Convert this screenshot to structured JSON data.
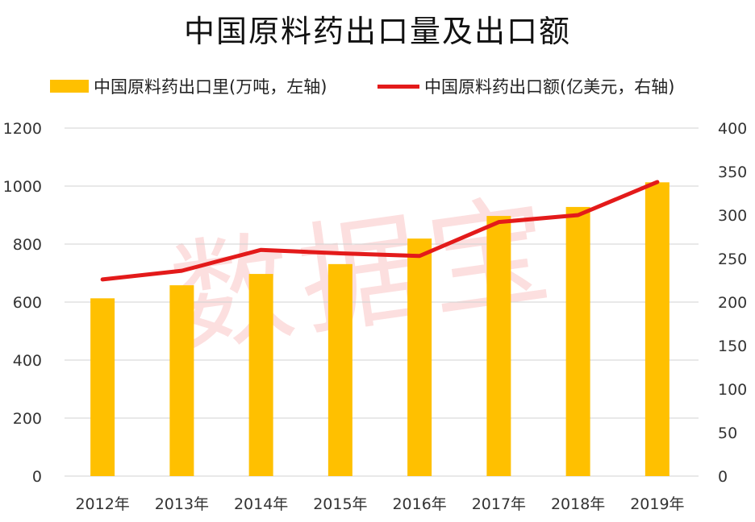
{
  "chart_data": {
    "type": "bar+line",
    "title": "中国原料药出口量及出口额",
    "categories": [
      "2012年",
      "2013年",
      "2014年",
      "2015年",
      "2016年",
      "2017年",
      "2018年",
      "2019年"
    ],
    "series": [
      {
        "name": "中国原料药出口里(万吨，左轴)",
        "type": "bar",
        "axis": "left",
        "color": "#FFC000",
        "values": [
          613,
          658,
          697,
          731,
          819,
          897,
          928,
          1013
        ]
      },
      {
        "name": "中国原料药出口额(亿美元，右轴)",
        "type": "line",
        "axis": "right",
        "color": "#E31A1A",
        "values": [
          226,
          236,
          260,
          256,
          253,
          292,
          300,
          338
        ]
      }
    ],
    "left_axis": {
      "ylim": [
        0,
        1200
      ],
      "ticks": [
        "0",
        "200",
        "400",
        "600",
        "800",
        "1000",
        "1200"
      ]
    },
    "right_axis": {
      "ylim": [
        0,
        400
      ],
      "ticks": [
        "0",
        "50",
        "100",
        "150",
        "200",
        "250",
        "300",
        "350",
        "400"
      ]
    },
    "grid": true,
    "legend_position": "top"
  },
  "watermark": "数据宝"
}
